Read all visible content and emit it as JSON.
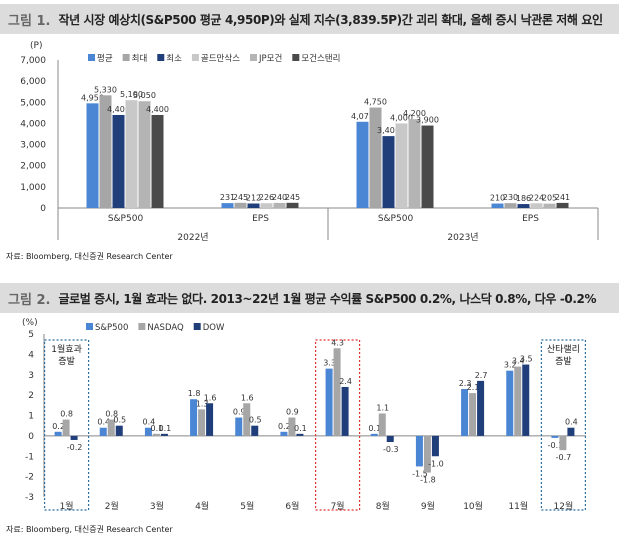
{
  "figure1": {
    "label": "그림 1.",
    "title": "작년 시장 예상치(S&P500 평균 4,950P)와 실제 지수(3,839.5P)간 괴리 확대, 올해 증시 낙관론 저해 요인",
    "source": "자료: Bloomberg, 대신증권 Research Center"
  },
  "figure2": {
    "label": "그림 2.",
    "title": "글로벌 증시, 1월 효과는 없다. 2013~22년 1월 평균 수익률 S&P500 0.2%, 나스닥 0.8%, 다우 -0.2%",
    "source": "자료: Bloomberg, 대신증권 Research Center"
  },
  "chart_data": [
    {
      "type": "bar",
      "unit_label": "(P)",
      "ylim": [
        0,
        7000
      ],
      "yticks": [
        "0",
        "1,000",
        "2,000",
        "3,000",
        "4,000",
        "5,000",
        "6,000",
        "7,000"
      ],
      "ytick_values": [
        0,
        1000,
        2000,
        3000,
        4000,
        5000,
        6000,
        7000
      ],
      "legend_position": "top",
      "groups": [
        "2022년",
        "2023년"
      ],
      "categories": [
        "S&P500",
        "EPS",
        "S&P500",
        "EPS"
      ],
      "series": [
        {
          "name": "평균",
          "color": "#4a86d4",
          "values": [
            4950,
            231,
            4078,
            210
          ],
          "labels": [
            "4,950",
            "231",
            "4,078",
            "210"
          ]
        },
        {
          "name": "최대",
          "color": "#a6a6a6",
          "values": [
            5330,
            245,
            4750,
            230
          ],
          "labels": [
            "5,330",
            "245",
            "4,750",
            "230"
          ]
        },
        {
          "name": "최소",
          "color": "#1f3e7a",
          "values": [
            4400,
            212,
            3400,
            186
          ],
          "labels": [
            "4,400",
            "212",
            "3,400",
            "186"
          ]
        },
        {
          "name": "골드만삭스",
          "color": "#c8c8c8",
          "values": [
            5100,
            226,
            4000,
            224
          ],
          "labels": [
            "5,100",
            "226",
            "4,000",
            "224"
          ]
        },
        {
          "name": "JP모건",
          "color": "#b4b4b4",
          "values": [
            5050,
            240,
            4200,
            205
          ],
          "labels": [
            "5,050",
            "240",
            "4,200",
            "205"
          ]
        },
        {
          "name": "모건스탠리",
          "color": "#4a4a4a",
          "values": [
            4400,
            245,
            3900,
            241
          ],
          "labels": [
            "4,400",
            "245",
            "3,900",
            "241"
          ]
        }
      ]
    },
    {
      "type": "bar",
      "unit_label": "(%)",
      "ylim": [
        -3,
        5
      ],
      "yticks": [
        "-3",
        "-2",
        "-1",
        "0",
        "1",
        "2",
        "3",
        "4",
        "5"
      ],
      "ytick_values": [
        -3,
        -2,
        -1,
        0,
        1,
        2,
        3,
        4,
        5
      ],
      "legend_position": "top-left",
      "categories": [
        "1월",
        "2월",
        "3월",
        "4월",
        "5월",
        "6월",
        "7월",
        "8월",
        "9월",
        "10월",
        "11월",
        "12월"
      ],
      "series": [
        {
          "name": "S&P500",
          "color": "#4a86d4",
          "values": [
            0.2,
            0.4,
            0.4,
            1.8,
            0.9,
            0.2,
            3.3,
            0.1,
            -1.5,
            2.3,
            3.2,
            -0.1
          ],
          "labels": [
            "0.2",
            "0.4",
            "0.4",
            "1.8",
            "0.9",
            "0.2",
            "3.3",
            "0.1",
            "-1.5",
            "2.3",
            "3.2",
            "-0.1"
          ]
        },
        {
          "name": "NASDAQ",
          "color": "#a6a6a6",
          "values": [
            0.8,
            0.8,
            0.1,
            1.3,
            1.6,
            0.9,
            4.3,
            1.1,
            -1.8,
            2.1,
            3.4,
            -0.7
          ],
          "labels": [
            "0.8",
            "0.8",
            "0.1",
            "1.3",
            "1.6",
            "0.9",
            "4.3",
            "1.1",
            "-1.8",
            "2.1",
            "3.4",
            "-0.7"
          ]
        },
        {
          "name": "DOW",
          "color": "#1f3e7a",
          "values": [
            -0.2,
            0.5,
            0.1,
            1.6,
            0.5,
            0.1,
            2.4,
            -0.3,
            -1.0,
            2.7,
            3.5,
            0.4
          ],
          "labels": [
            "-0.2",
            "0.5",
            "0.1",
            "1.6",
            "0.5",
            "0.1",
            "2.4",
            "-0.3",
            "-1.0",
            "2.7",
            "3.5",
            "0.4"
          ]
        }
      ],
      "annotations": [
        {
          "text": [
            "1월효과",
            "증발"
          ],
          "month_index": 0,
          "color": "#2a6f9e"
        },
        {
          "text": [],
          "month_index": 6,
          "color": "#e03030"
        },
        {
          "text": [
            "산타랠리",
            "증발"
          ],
          "month_index": 11,
          "color": "#2a6f9e"
        }
      ]
    }
  ]
}
